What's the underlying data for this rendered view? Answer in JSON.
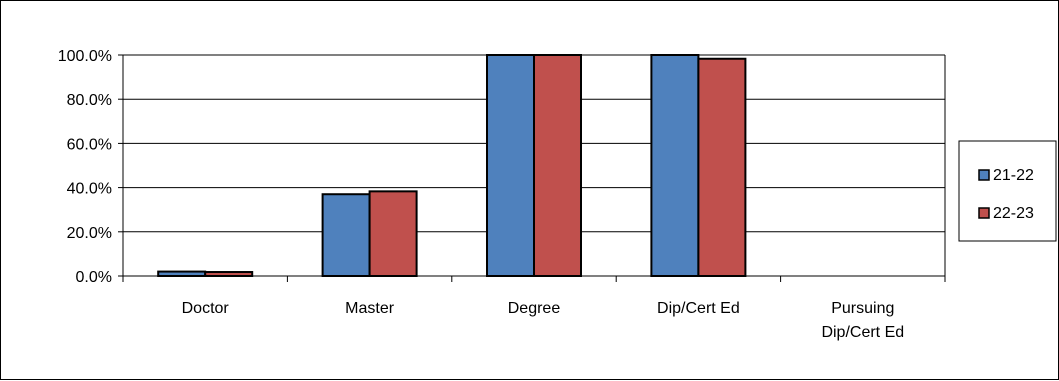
{
  "chart_data": {
    "type": "bar",
    "categories": [
      "Doctor",
      "Master",
      "Degree",
      "Dip/Cert Ed",
      "Pursuing Dip/Cert Ed"
    ],
    "category_lines": [
      [
        "Doctor"
      ],
      [
        "Master"
      ],
      [
        "Degree"
      ],
      [
        "Dip/Cert Ed"
      ],
      [
        "Pursuing",
        "Dip/Cert Ed"
      ]
    ],
    "series": [
      {
        "name": "21-22",
        "color": "#4F81BD",
        "values": [
          2.0,
          37.0,
          100.0,
          100.0,
          0.0
        ]
      },
      {
        "name": "22-23",
        "color": "#C0504D",
        "values": [
          1.8,
          38.3,
          100.0,
          98.3,
          0.0
        ]
      }
    ],
    "title": "",
    "xlabel": "",
    "ylabel": "",
    "ylim": [
      0,
      100
    ],
    "yticks": [
      0,
      20,
      40,
      60,
      80,
      100
    ],
    "ytick_labels": [
      "0.0%",
      "20.0%",
      "40.0%",
      "60.0%",
      "80.0%",
      "100.0%"
    ],
    "grid": true,
    "legend_position": "right"
  }
}
